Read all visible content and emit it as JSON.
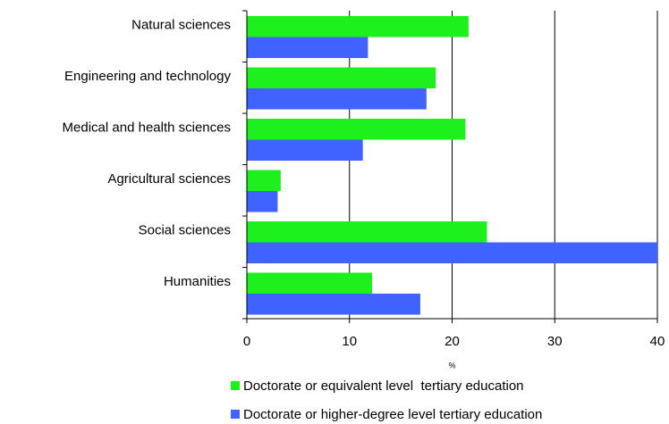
{
  "chart_data": {
    "type": "barh",
    "categories": [
      "Natural sciences",
      "Engineering and technology",
      "Medical and health sciences",
      "Agricultural sciences",
      "Social sciences",
      "Humanities"
    ],
    "series": [
      {
        "name": "Doctorate or equivalent level  tertiary education",
        "color": "#1ef01e",
        "values": [
          21.6,
          18.4,
          21.3,
          3.3,
          23.4,
          12.2
        ]
      },
      {
        "name": "Doctorate or higher-degree level tertiary education",
        "color": "#4063ff",
        "values": [
          11.8,
          17.5,
          11.3,
          3.0,
          40,
          16.9
        ]
      }
    ],
    "xlabel": "%",
    "xlim": [
      0,
      40
    ],
    "xticks": [
      0,
      10,
      20,
      30,
      40
    ],
    "grid": true,
    "legend": "bottom"
  }
}
